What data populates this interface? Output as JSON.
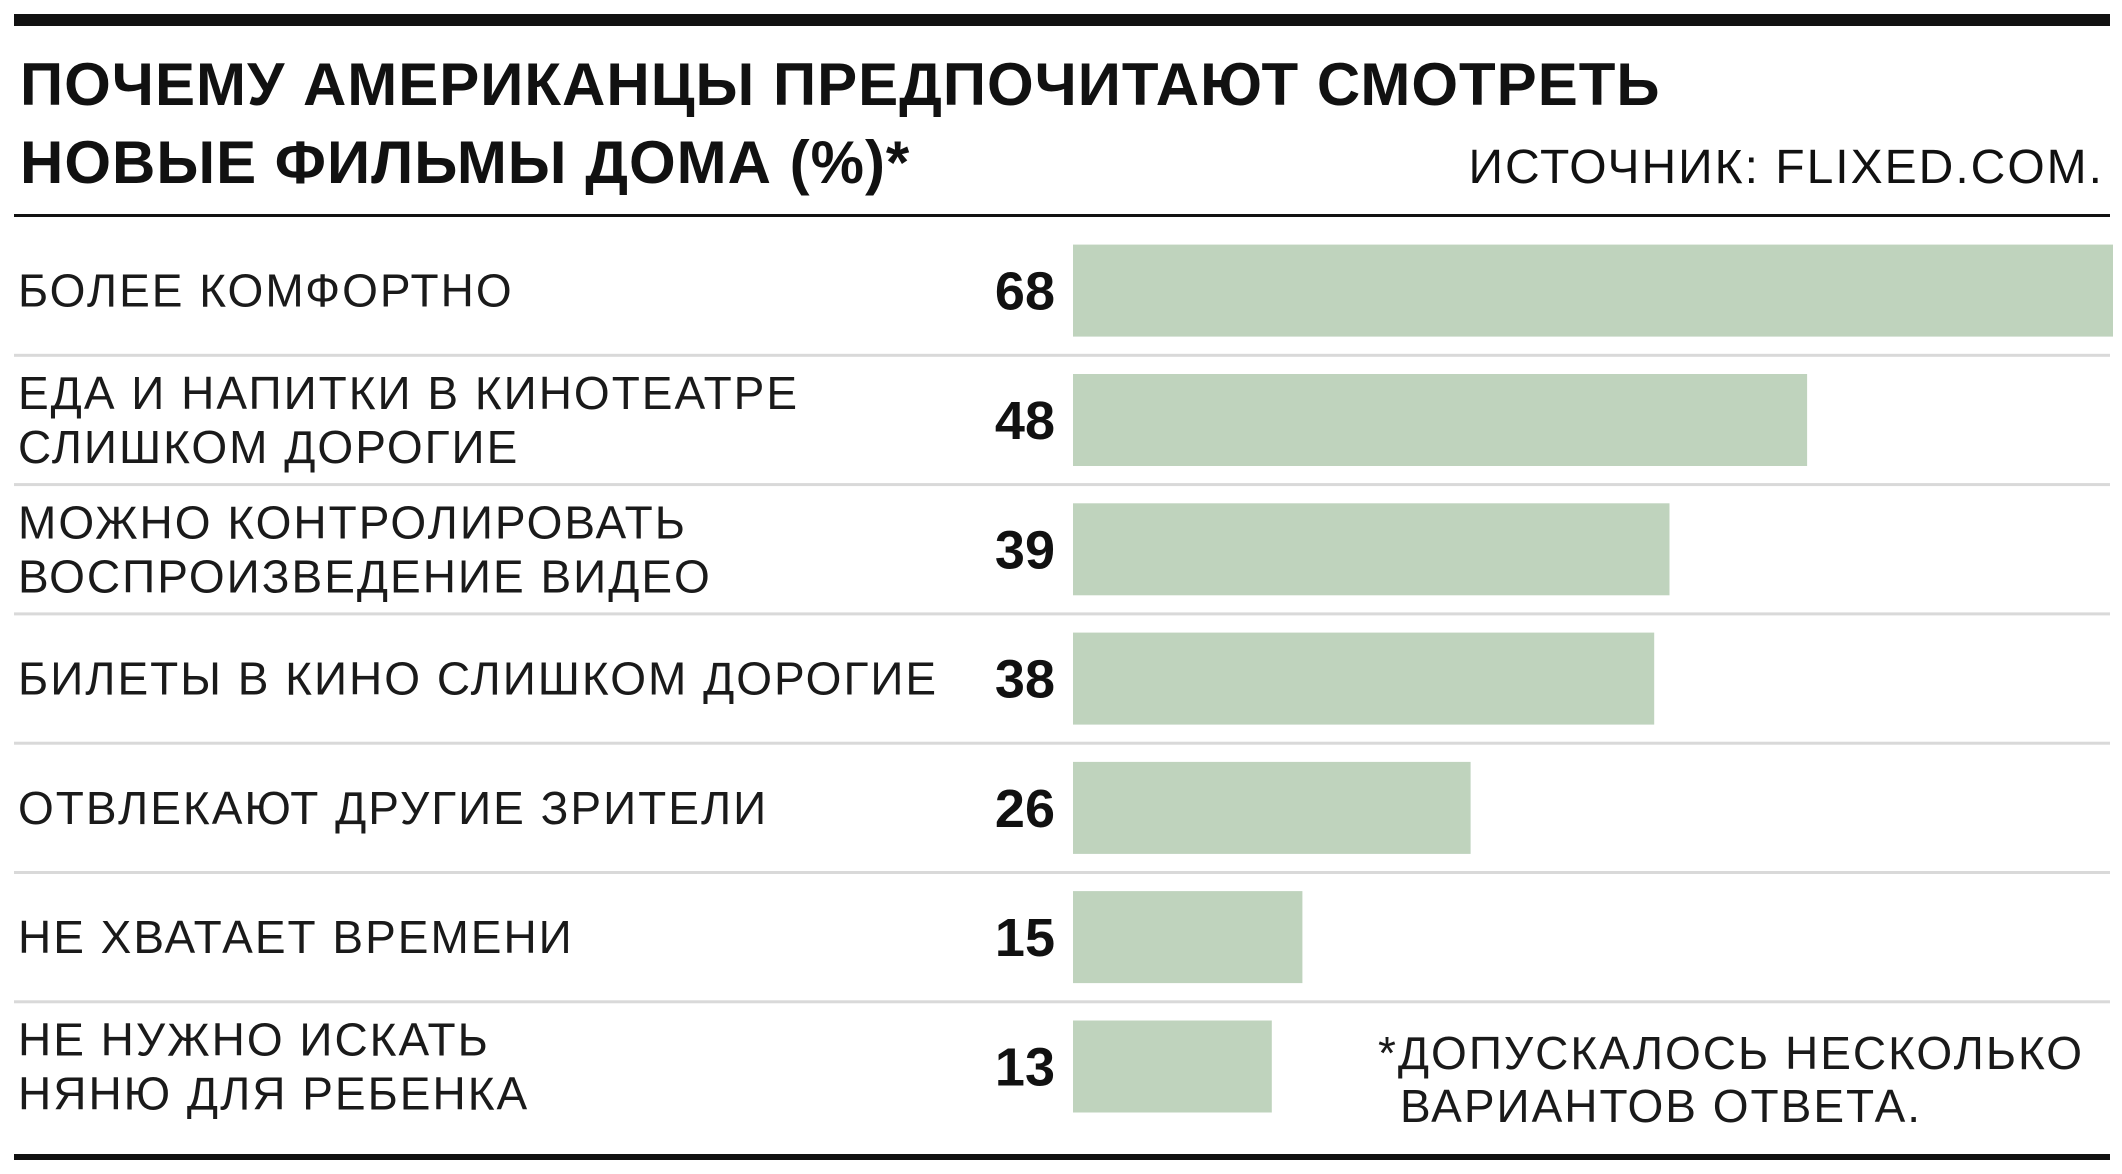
{
  "title_lines": [
    "ПОЧЕМУ АМЕРИКАНЦЫ ПРЕДПОЧИТАЮТ СМОТРЕТЬ",
    "НОВЫЕ ФИЛЬМЫ ДОМА (%)*"
  ],
  "source": "ИСТОЧНИК: FLIXED.COM.",
  "footnote_lines": [
    "*ДОПУСКАЛОСЬ НЕСКОЛЬКО",
    "ВАРИАНТОВ ОТВЕТА."
  ],
  "colors": {
    "bar": "#bfd3bd",
    "rule": "#111111",
    "divider": "#d9d9d9",
    "text": "#1a1a1a"
  },
  "chart_data": {
    "type": "bar",
    "orientation": "horizontal",
    "title": "ПОЧЕМУ АМЕРИКАНЦЫ ПРЕДПОЧИТАЮТ СМОТРЕТЬ НОВЫЕ ФИЛЬМЫ ДОМА (%)*",
    "categories": [
      [
        "БОЛЕЕ КОМФОРТНО"
      ],
      [
        "ЕДА И НАПИТКИ В КИНОТЕАТРЕ",
        "СЛИШКОМ ДОРОГИЕ"
      ],
      [
        "МОЖНО КОНТРОЛИРОВАТЬ",
        "ВОСПРОИЗВЕДЕНИЕ ВИДЕО"
      ],
      [
        "БИЛЕТЫ В КИНО СЛИШКОМ ДОРОГИЕ"
      ],
      [
        "ОТВЛЕКАЮТ ДРУГИЕ ЗРИТЕЛИ"
      ],
      [
        "НЕ ХВАТАЕТ ВРЕМЕНИ"
      ],
      [
        "НЕ НУЖНО ИСКАТЬ",
        "НЯНЮ ДЛЯ РЕБЕНКА"
      ]
    ],
    "values": [
      68,
      48,
      39,
      38,
      26,
      15,
      13
    ],
    "xlim": [
      0,
      68
    ],
    "grid": false,
    "legend": "none",
    "value_labels": true
  }
}
